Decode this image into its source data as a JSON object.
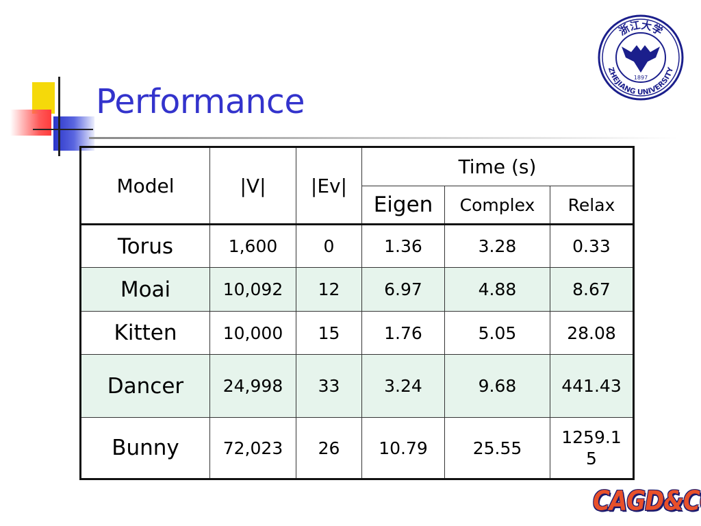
{
  "slide": {
    "title": "Performance",
    "footer_logo": "CAGD&CG"
  },
  "logo": {
    "university": "ZHEJIANG UNIVERSITY",
    "year": "1897",
    "chinese": "浙江大学",
    "icon": "zhejiang-university-seal-icon"
  },
  "table": {
    "headers": {
      "model": "Model",
      "v": "|V|",
      "ev": "|Ev|",
      "time": "Time (s)",
      "eigen": "Eigen",
      "complex": "Complex",
      "relax": "Relax"
    },
    "rows": [
      {
        "model": "Torus",
        "v": "1,600",
        "ev": "0",
        "eigen": "1.36",
        "complex": "3.28",
        "relax": "0.33"
      },
      {
        "model": "Moai",
        "v": "10,092",
        "ev": "12",
        "eigen": "6.97",
        "complex": "4.88",
        "relax": "8.67"
      },
      {
        "model": "Kitten",
        "v": "10,000",
        "ev": "15",
        "eigen": "1.76",
        "complex": "5.05",
        "relax": "28.08"
      },
      {
        "model": "Dancer",
        "v": "24,998",
        "ev": "33",
        "eigen": "3.24",
        "complex": "9.68",
        "relax": "441.43"
      },
      {
        "model": "Bunny",
        "v": "72,023",
        "ev": "26",
        "eigen": "10.79",
        "complex": "25.55",
        "relax": "1259.15"
      }
    ],
    "shade_color": "#e6f4ec"
  },
  "colors": {
    "title": "#3333cc",
    "accent_yellow": "#f5d90a",
    "accent_red": "#ff3c3c",
    "accent_blue": "#2a35c8"
  }
}
